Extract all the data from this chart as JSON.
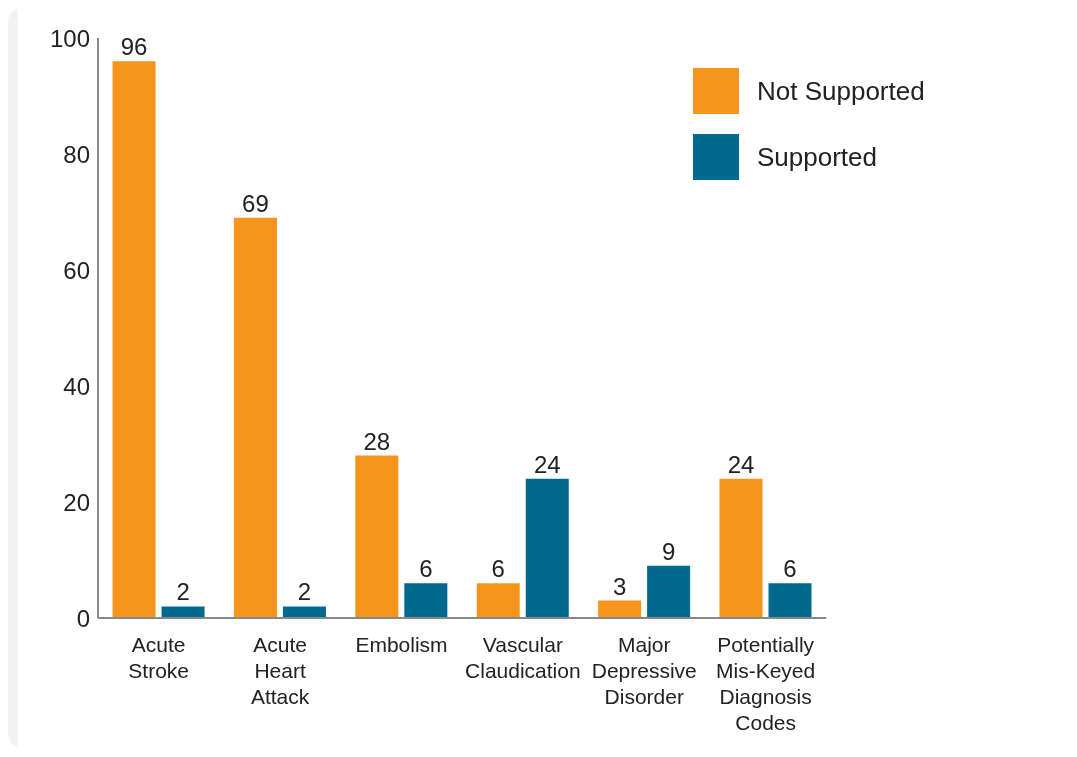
{
  "chart_data": {
    "type": "bar",
    "categories": [
      "Acute Stroke",
      "Acute Heart Attack",
      "Embolism",
      "Vascular Claudication",
      "Major Depressive Disorder",
      "Potentially Mis-Keyed Diagnosis Codes"
    ],
    "series": [
      {
        "name": "Not Supported",
        "color": "#f7941d",
        "values": [
          96,
          69,
          28,
          6,
          3,
          24
        ]
      },
      {
        "name": "Supported",
        "color": "#006a8e",
        "values": [
          2,
          2,
          6,
          24,
          9,
          6
        ]
      }
    ],
    "ylim": [
      0,
      100
    ],
    "yticks": [
      0,
      20,
      40,
      60,
      80,
      100
    ],
    "grid": false,
    "legend": "top right",
    "data_labels": true
  }
}
